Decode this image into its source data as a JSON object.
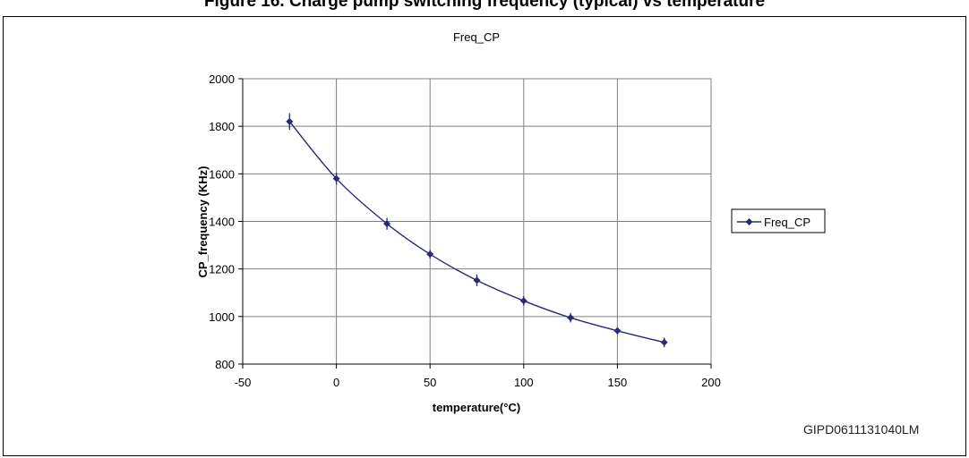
{
  "figure_caption": "Figure 16. Charge pump switching frequency (typical) vs temperature",
  "figure_id": "GIPD0611131040LM",
  "chart_data": {
    "type": "line",
    "title": "Freq_CP",
    "xlabel": "temperature(°C)",
    "ylabel": "CP_frequency (KHz)",
    "xlim": [
      -50,
      200
    ],
    "ylim": [
      800,
      2000
    ],
    "x_ticks": [
      -50,
      0,
      50,
      100,
      150,
      200
    ],
    "y_ticks": [
      800,
      1000,
      1200,
      1400,
      1600,
      1800,
      2000
    ],
    "grid": true,
    "legend_position": "right",
    "series": [
      {
        "name": "Freq_CP",
        "color": "#2a2a7a",
        "marker": "diamond",
        "x": [
          -25,
          0,
          27,
          50,
          75,
          100,
          125,
          150,
          175
        ],
        "y": [
          1820,
          1580,
          1390,
          1262,
          1152,
          1066,
          995,
          940,
          891
        ],
        "error": [
          35,
          25,
          25,
          18,
          25,
          20,
          20,
          15,
          20
        ]
      }
    ]
  }
}
